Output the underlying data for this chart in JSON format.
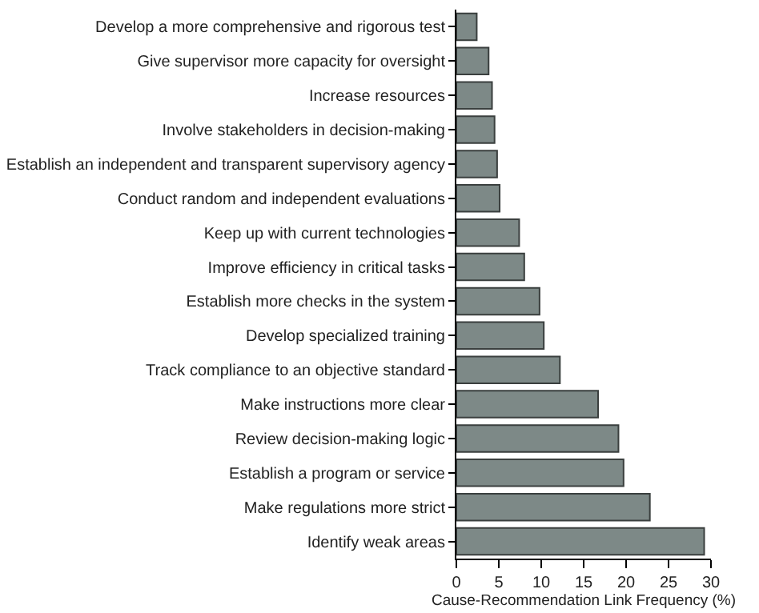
{
  "chart_data": {
    "type": "bar",
    "orientation": "horizontal",
    "xlabel": "Cause-Recommendation Link Frequency (%)",
    "categories": [
      "Develop a more comprehensive and rigorous test",
      "Give supervisor more capacity for oversight",
      "Increase resources",
      "Involve stakeholders in decision-making",
      "Establish an independent and transparent supervisory agency",
      "Conduct random and independent evaluations",
      "Keep up with current technologies",
      "Improve efficiency in critical tasks",
      "Establish more checks in the system",
      "Develop specialized training",
      "Track compliance to an objective standard",
      "Make instructions more clear",
      "Review decision-making logic",
      "Establish a program or service",
      "Make regulations more strict",
      "Identify weak areas"
    ],
    "values": [
      2.4,
      3.8,
      4.2,
      4.5,
      4.8,
      5.1,
      7.4,
      8.0,
      9.8,
      10.3,
      12.2,
      16.7,
      19.1,
      19.7,
      22.8,
      29.2
    ],
    "color": "#7d8987",
    "xlim": [
      0,
      30
    ],
    "xticks": [
      0,
      5,
      10,
      15,
      20,
      25,
      30
    ]
  }
}
